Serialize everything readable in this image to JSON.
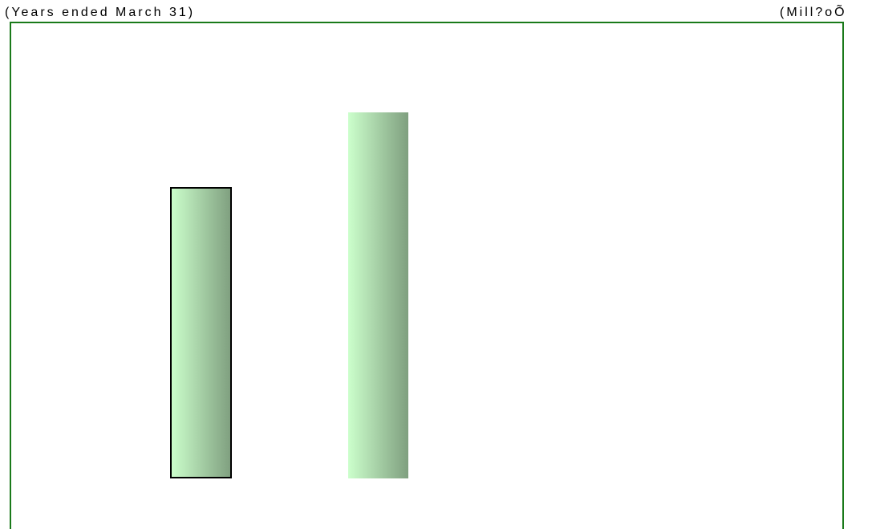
{
  "header": {
    "left_note": "(Years ended March 31)",
    "right_note": "(Mill?oÕ"
  }
}
